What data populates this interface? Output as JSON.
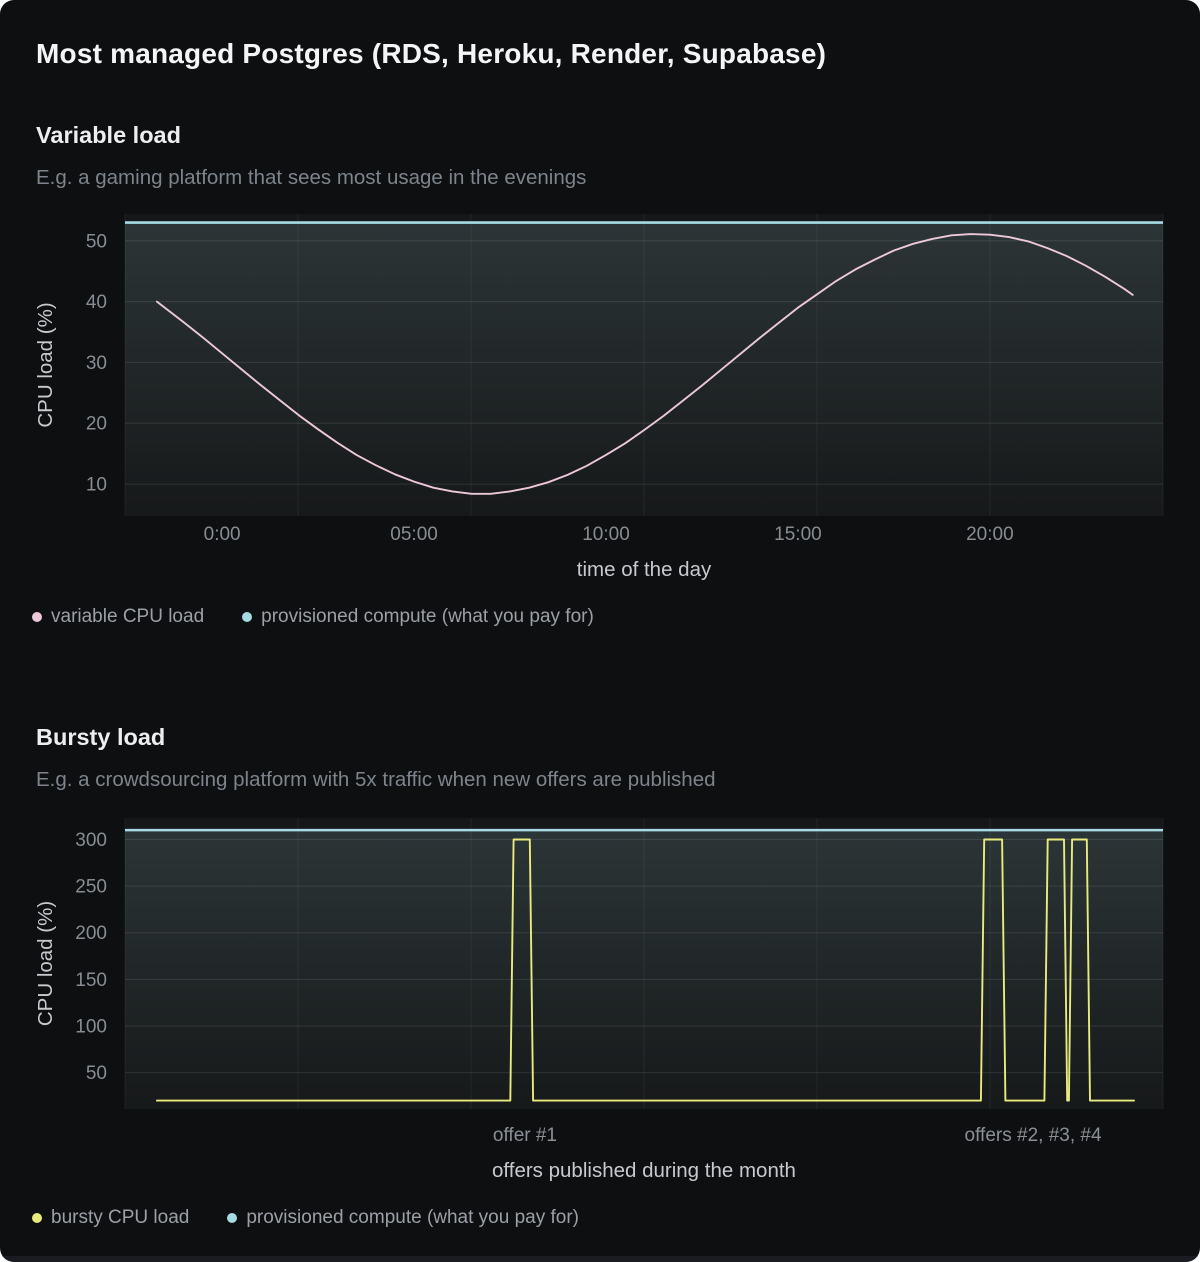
{
  "page": {
    "title": "Most managed Postgres (RDS, Heroku, Render, Supabase)"
  },
  "colors": {
    "card_bg": "#0e0f11",
    "plot_bg": "#151718",
    "fill_tint": "#9ac4ca",
    "grid": "#ffffff",
    "tick_label": "#868d93",
    "axis_title": "#c6cacf",
    "annotation": "#8a9096",
    "heading": "#eceef0",
    "subtitle": "#7d848b",
    "legend_text": "#9ba0a6",
    "bottom_strip": "#1a1c21",
    "variable_line": "#ecc8da",
    "provisioned_line": "#a7dbe4",
    "bursty_line": "#e8ea7e"
  },
  "charts": [
    {
      "heading": "Variable load",
      "subtitle": "E.g. a gaming platform that sees most usage in the evenings",
      "legend": [
        {
          "label": "variable CPU load",
          "color": "#ecc8da"
        },
        {
          "label": "provisioned compute (what you pay for)",
          "color": "#a7dbe4"
        }
      ],
      "chart_data": {
        "type": "line",
        "xlabel": "time of the day",
        "ylabel": "CPU load (%)",
        "xlim": [
          -2.53,
          24.51
        ],
        "ylim": [
          4.75,
          54.4
        ],
        "xticks": {
          "values": [
            0,
            5,
            10,
            15,
            20
          ],
          "labels": [
            "0:00",
            "05:00",
            "10:00",
            "15:00",
            "20:00"
          ]
        },
        "yticks": [
          10,
          20,
          30,
          40,
          50
        ],
        "grid": true,
        "legend_position": "bottom-left",
        "annotations": [],
        "series": [
          {
            "name": "variable CPU load",
            "kind": "line",
            "color": "#ecc8da",
            "x": [
              -1.7,
              -1,
              -0.5,
              0,
              0.5,
              1,
              1.5,
              2,
              2.5,
              3,
              3.5,
              4,
              4.5,
              5,
              5.5,
              6,
              6.5,
              7,
              7.5,
              8,
              8.5,
              9,
              9.5,
              10,
              10.5,
              11,
              11.5,
              12,
              12.5,
              13,
              13.5,
              14,
              14.5,
              15,
              15.5,
              16,
              16.5,
              17,
              17.5,
              18,
              18.5,
              19,
              19.5,
              20,
              20.5,
              21,
              21.5,
              22,
              22.5,
              23,
              23.5,
              23.72
            ],
            "y": [
              40.0,
              36.6,
              34.1,
              31.5,
              28.9,
              26.3,
              23.8,
              21.3,
              19.0,
              16.8,
              14.8,
              13.1,
              11.6,
              10.4,
              9.4,
              8.8,
              8.4,
              8.4,
              8.8,
              9.4,
              10.3,
              11.5,
              13.0,
              14.8,
              16.7,
              18.9,
              21.2,
              23.7,
              26.2,
              28.8,
              31.4,
              34.0,
              36.5,
              39.0,
              41.2,
              43.4,
              45.3,
              46.9,
              48.4,
              49.5,
              50.3,
              50.9,
              51.1,
              51.0,
              50.6,
              49.9,
              48.8,
              47.5,
              45.9,
              44.1,
              42.1,
              41.1
            ]
          },
          {
            "name": "provisioned compute (what you pay for)",
            "kind": "hline",
            "color": "#a7dbe4",
            "value": 53
          }
        ]
      }
    },
    {
      "heading": "Bursty load",
      "subtitle": "E.g. a crowdsourcing platform with 5x traffic when new offers are published",
      "legend": [
        {
          "label": "bursty CPU load",
          "color": "#e8ea7e"
        },
        {
          "label": "provisioned compute (what you pay for)",
          "color": "#a7dbe4"
        }
      ],
      "chart_data": {
        "type": "line",
        "xlabel": "offers published during the month",
        "ylabel": "CPU load (%)",
        "xlim": [
          0.02,
          31.89
        ],
        "ylim": [
          11,
          323
        ],
        "xticks": {
          "values": [],
          "labels": []
        },
        "yticks": [
          50,
          100,
          150,
          200,
          250,
          300
        ],
        "grid": true,
        "legend_position": "bottom-left",
        "annotations": [
          {
            "x": 12.3,
            "text": "offer #1"
          },
          {
            "x": 27.9,
            "text": "offers #2, #3, #4"
          }
        ],
        "series": [
          {
            "name": "bursty CPU load",
            "kind": "line",
            "color": "#e8ea7e",
            "x": [
              1,
              11.85,
              11.95,
              12.45,
              12.55,
              26.3,
              26.4,
              26.95,
              27.05,
              28.25,
              28.35,
              28.85,
              28.95,
              29.0,
              29.1,
              29.55,
              29.65,
              31
            ],
            "y": [
              20,
              20,
              300,
              300,
              20,
              20,
              300,
              300,
              20,
              20,
              300,
              300,
              20,
              20,
              300,
              300,
              20,
              20
            ]
          },
          {
            "name": "provisioned compute (what you pay for)",
            "kind": "hline",
            "color": "#a7dbe4",
            "value": 310
          }
        ]
      }
    }
  ]
}
